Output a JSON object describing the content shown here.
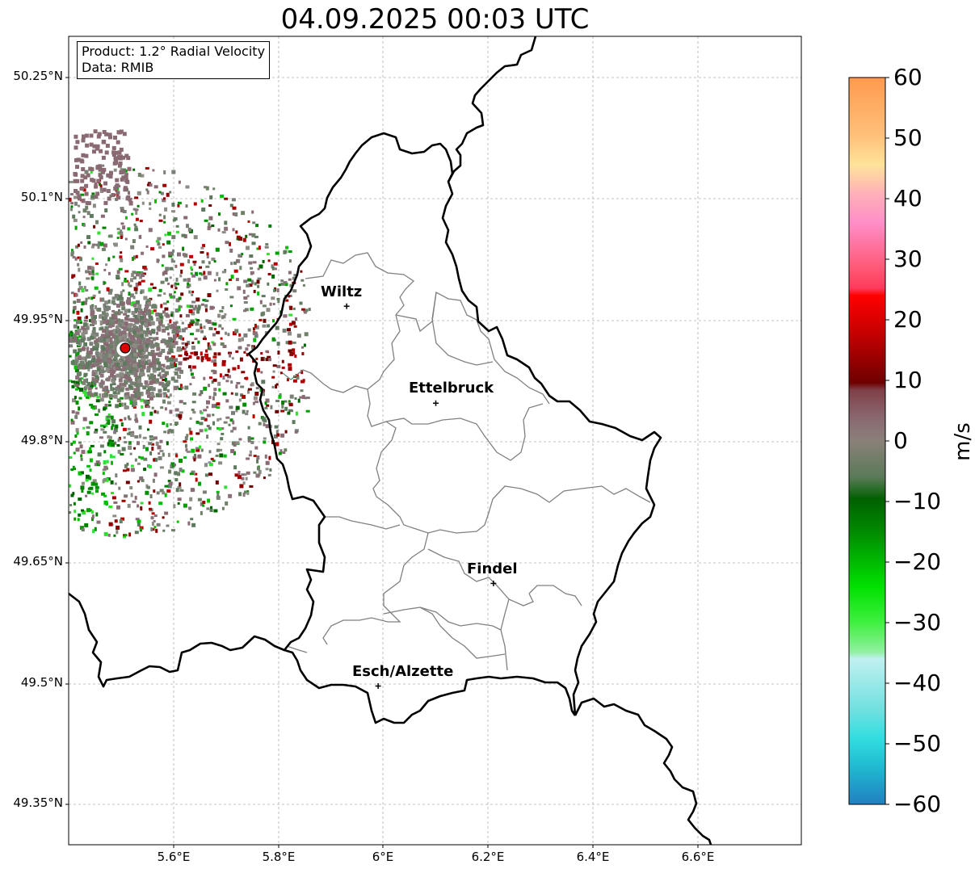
{
  "title": "04.09.2025 00:03 UTC",
  "info": {
    "product": "Product: 1.2° Radial Velocity",
    "data": "Data: RMIB"
  },
  "lat_ticks": [
    "50.25°N",
    "50.1°N",
    "49.95°N",
    "49.8°N",
    "49.65°N",
    "49.5°N",
    "49.35°N"
  ],
  "lon_ticks": [
    "5.6°E",
    "5.8°E",
    "6°E",
    "6.2°E",
    "6.4°E",
    "6.6°E"
  ],
  "cities": [
    {
      "name": "Wiltz",
      "lon": 5.93,
      "lat": 49.967
    },
    {
      "name": "Ettelbruck",
      "lon": 6.1,
      "lat": 49.847
    },
    {
      "name": "Findel",
      "lon": 6.21,
      "lat": 49.624
    },
    {
      "name": "Esch/Alzette",
      "lon": 5.99,
      "lat": 49.497
    }
  ],
  "radar_site": {
    "lon": 5.505,
    "lat": 49.914
  },
  "colorbar": {
    "unit": "m/s",
    "ticks": [
      "60",
      "50",
      "40",
      "30",
      "20",
      "10",
      "0",
      "−10",
      "−20",
      "−30",
      "−40",
      "−50",
      "−60"
    ],
    "min": -60,
    "max": 60
  },
  "colors": {
    "border": "#000000",
    "canton": "#808080",
    "grid": "#b0b0b0",
    "radar_site": "#e00000"
  }
}
